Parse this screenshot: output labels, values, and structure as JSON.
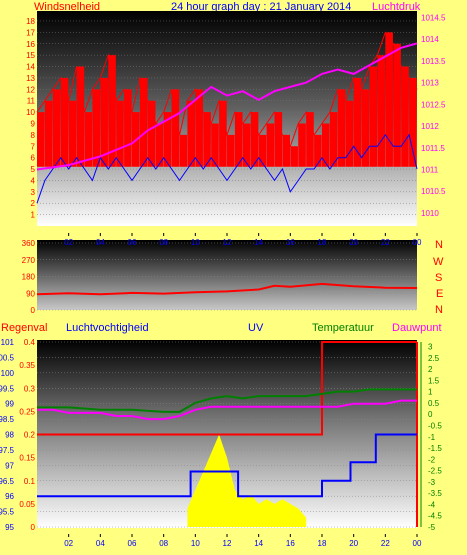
{
  "header": {
    "left_label": "Windsnelheid",
    "title": "24 hour graph day : 21 January 2014",
    "right_label": "Luchtdruk"
  },
  "compass": [
    "N",
    "W",
    "S",
    "E",
    "N"
  ],
  "bottom_labels": {
    "rain": "Regenval",
    "humidity": "Luchtvochtigheid",
    "uv": "UV",
    "temperature": "Temperatuur",
    "dewpoint": "Dauwpunt"
  },
  "colors": {
    "wind_gust": "#ff0000",
    "wind_avg": "#0000ff",
    "pressure": "#ff00ff",
    "direction": "#ff0000",
    "humidity": "#ff00ff",
    "temperature": "#008000",
    "dewpoint": "#008000",
    "rain": "#ff0000",
    "uv": "#0000ff",
    "solar": "#ffff00"
  },
  "chart_data": [
    {
      "type": "line",
      "title": "24 hour graph day : 21 January 2014",
      "x_ticks": [
        "02",
        "04",
        "06",
        "08",
        "10",
        "12",
        "14",
        "16",
        "18",
        "20",
        "22",
        "00"
      ],
      "left_axis": {
        "label": "Windsnelheid",
        "ticks": [
          "1",
          "2",
          "3",
          "4",
          "5",
          "6",
          "7",
          "8",
          "9",
          "10",
          "11",
          "12",
          "13",
          "14",
          "15",
          "16",
          "17",
          "18"
        ],
        "ylim": [
          0,
          18.7
        ]
      },
      "right_axis": {
        "label": "Luchtdruk",
        "ticks": [
          "1010",
          "1010.5",
          "1011",
          "1011.5",
          "1012",
          "1012.5",
          "1013",
          "1013.5",
          "1014",
          "1014.5"
        ],
        "ylim": [
          1009.7,
          1014.6
        ]
      },
      "series": [
        {
          "name": "Windsnelheid (gust)",
          "axis": "left",
          "x": [
            0,
            0.5,
            1,
            1.5,
            2,
            2.5,
            3,
            3.5,
            4,
            4.5,
            5,
            5.5,
            6,
            6.5,
            7,
            7.5,
            8,
            8.5,
            9,
            9.5,
            10,
            10.5,
            11,
            11.5,
            12,
            12.5,
            13,
            13.5,
            14,
            14.5,
            15,
            15.5,
            16,
            16.5,
            17,
            17.5,
            18,
            18.5,
            19,
            19.5,
            20,
            20.5,
            21,
            21.5,
            22,
            22.5,
            23,
            23.5,
            24
          ],
          "values": [
            10,
            11,
            12,
            13,
            11,
            14,
            10,
            12,
            13,
            15,
            11,
            12,
            10,
            13,
            11,
            9,
            10,
            12,
            8,
            11,
            12,
            10,
            9,
            11,
            8,
            10,
            9,
            10,
            8,
            9,
            10,
            8,
            7,
            9,
            10,
            8,
            9,
            10,
            12,
            11,
            13,
            12,
            14,
            15,
            17,
            16,
            14,
            13,
            12
          ]
        },
        {
          "name": "Windsnelheid (avg)",
          "axis": "left",
          "x": [
            0,
            0.5,
            1,
            1.5,
            2,
            2.5,
            3,
            3.5,
            4,
            4.5,
            5,
            5.5,
            6,
            6.5,
            7,
            7.5,
            8,
            8.5,
            9,
            9.5,
            10,
            10.5,
            11,
            11.5,
            12,
            12.5,
            13,
            13.5,
            14,
            14.5,
            15,
            15.5,
            16,
            16.5,
            17,
            17.5,
            18,
            18.5,
            19,
            19.5,
            20,
            20.5,
            21,
            21.5,
            22,
            22.5,
            23,
            23.5,
            24
          ],
          "values": [
            2,
            4,
            5,
            6,
            5,
            6,
            5,
            4,
            6,
            5,
            6,
            5,
            4,
            5,
            6,
            5,
            6,
            5,
            4,
            5,
            6,
            5,
            6,
            5,
            4,
            5,
            6,
            5,
            6,
            5,
            4,
            5,
            3,
            4,
            5,
            5,
            6,
            5,
            6,
            6,
            7,
            6,
            7,
            7,
            8,
            7,
            7,
            8,
            5
          ]
        },
        {
          "name": "Luchtdruk",
          "axis": "right",
          "x": [
            0,
            2,
            4,
            6,
            7,
            8,
            9,
            10,
            11,
            12,
            13,
            14,
            15,
            16,
            17,
            18,
            19,
            20,
            21,
            22,
            23,
            24
          ],
          "values": [
            1011.0,
            1011.1,
            1011.3,
            1011.6,
            1011.9,
            1012.1,
            1012.3,
            1012.6,
            1012.9,
            1012.7,
            1012.8,
            1012.6,
            1012.8,
            1012.9,
            1013.0,
            1013.2,
            1013.3,
            1013.2,
            1013.4,
            1013.6,
            1013.8,
            1013.9
          ]
        }
      ]
    },
    {
      "type": "line",
      "x_ticks": [
        "02",
        "04",
        "06",
        "08",
        "10",
        "12",
        "14",
        "16",
        "18",
        "20",
        "22",
        "00"
      ],
      "y_ticks": [
        "360",
        "270",
        "180",
        "90",
        "0"
      ],
      "ylim": [
        0,
        360
      ],
      "series": [
        {
          "name": "Wind direction",
          "x": [
            0,
            2,
            4,
            6,
            8,
            10,
            12,
            14,
            15,
            16,
            18,
            20,
            22,
            24
          ],
          "values": [
            85,
            90,
            85,
            92,
            88,
            95,
            100,
            110,
            130,
            125,
            140,
            128,
            120,
            118
          ]
        }
      ]
    },
    {
      "type": "line",
      "x_ticks": [
        "02",
        "04",
        "06",
        "08",
        "10",
        "12",
        "14",
        "16",
        "18",
        "20",
        "22",
        "00"
      ],
      "rain_axis": {
        "label": "Regenval",
        "ticks": [
          "0",
          "0.05",
          "0.1",
          "0.15",
          "0.2",
          "0.25",
          "0.3",
          "0.35",
          "0.4"
        ],
        "ylim": [
          0,
          0.4
        ]
      },
      "humidity_axis": {
        "label": "Luchtvochtigheid",
        "ticks": [
          "95",
          "95.5",
          "96",
          "96.5",
          "97",
          "97.5",
          "98",
          "98.5",
          "99",
          "99.5",
          "100",
          "100.5",
          "101"
        ],
        "ylim": [
          95,
          101
        ]
      },
      "temperature_axis": {
        "label": "Temperatuur",
        "ticks": [
          "-5",
          "-4.5",
          "-4",
          "-3.5",
          "-3",
          "-2.5",
          "-2",
          "-1.5",
          "-1",
          "-0.5",
          "0",
          "0.5",
          "1",
          "1.5",
          "2",
          "2.5",
          "3"
        ],
        "ylim": [
          -5,
          3.2
        ]
      },
      "series": [
        {
          "name": "Regenval",
          "x": [
            0,
            18,
            18,
            24
          ],
          "values": [
            0.2,
            0.2,
            0.4,
            0.4
          ]
        },
        {
          "name": "Luchtvochtigheid",
          "x": [
            0,
            1,
            2,
            3,
            4,
            5,
            6,
            7,
            8,
            9,
            10,
            11,
            12,
            13,
            14,
            15,
            16,
            17,
            18,
            19,
            20,
            21,
            22,
            23,
            24
          ],
          "values": [
            98.8,
            98.8,
            98.7,
            98.7,
            98.7,
            98.6,
            98.6,
            98.5,
            98.5,
            98.6,
            98.8,
            98.9,
            98.9,
            98.9,
            98.9,
            98.9,
            98.9,
            98.9,
            98.9,
            98.9,
            99.0,
            99.0,
            99.0,
            99.1,
            99.1
          ]
        },
        {
          "name": "Temperatuur",
          "x": [
            0,
            2,
            4,
            6,
            8,
            9,
            10,
            11,
            12,
            13,
            14,
            15,
            16,
            17,
            18,
            19,
            20,
            21,
            22,
            23,
            24
          ],
          "values": [
            0.3,
            0.3,
            0.2,
            0.2,
            0.1,
            0.1,
            0.5,
            0.7,
            0.8,
            0.7,
            0.8,
            0.8,
            0.8,
            0.8,
            0.9,
            1.0,
            1.0,
            1.1,
            1.1,
            1.1,
            1.1
          ]
        },
        {
          "name": "UV",
          "x": [
            0,
            2,
            4,
            6,
            8,
            9.7,
            9.7,
            12.7,
            12.7,
            16.9,
            16.9,
            18,
            18,
            19.8,
            19.8,
            21.4,
            21.4,
            24
          ],
          "values": [
            96.0,
            96.0,
            96.0,
            96.0,
            96.0,
            96.0,
            96.8,
            96.8,
            96.0,
            96.0,
            96.0,
            96.0,
            96.5,
            96.5,
            97.1,
            97.1,
            98.0,
            98.0
          ]
        },
        {
          "name": "Solar",
          "x": [
            9.5,
            10,
            10.5,
            11,
            11.5,
            12,
            12.5,
            13,
            13.5,
            14,
            14.5,
            15,
            15.5,
            16,
            16.5,
            17
          ],
          "values": [
            0.04,
            0.08,
            0.12,
            0.16,
            0.2,
            0.15,
            0.08,
            0.06,
            0.07,
            0.05,
            0.06,
            0.05,
            0.06,
            0.05,
            0.04,
            0.02
          ]
        }
      ]
    }
  ]
}
